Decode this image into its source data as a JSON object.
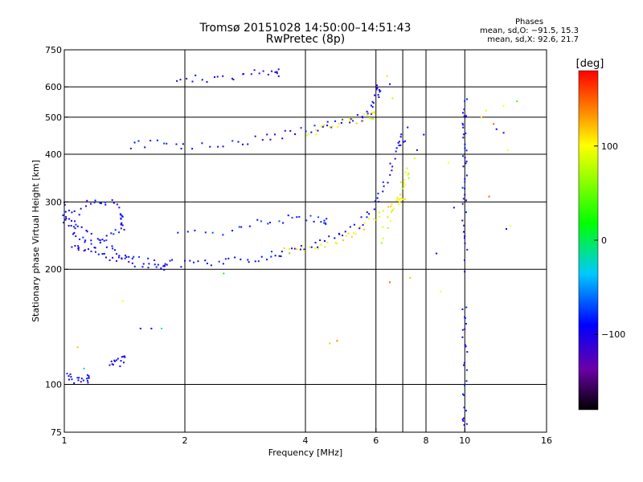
{
  "header": {
    "title_line1": "Tromsø 20151028 14:50:00–14:51:43",
    "title_line2": "RwPretec (8p)"
  },
  "stats": {
    "heading": "Phases",
    "line1": "mean, sd,O: −91.5, 15.3",
    "line2": "mean, sd,X:  92.6, 21.7"
  },
  "colorbar": {
    "label": "[deg]",
    "ticks": [
      {
        "value": 100,
        "label": "100"
      },
      {
        "value": 0,
        "label": "0"
      },
      {
        "value": -100,
        "label": "−100"
      }
    ],
    "range": [
      -180,
      180
    ]
  },
  "chart_data": {
    "type": "scatter",
    "title": "Tromsø 20151028 14:50:00–14:51:43",
    "subtitle": "RwPretec (8p)",
    "xlabel": "Frequency [MHz]",
    "ylabel": "Stationary phase Virtual Height [km]",
    "xscale": "log",
    "yscale": "log",
    "xlim": [
      1,
      16
    ],
    "ylim": [
      75,
      750
    ],
    "xticks": [
      {
        "v": 1,
        "label": "1"
      },
      {
        "v": 2,
        "label": "2"
      },
      {
        "v": 4,
        "label": "4"
      },
      {
        "v": 6,
        "label": "6"
      },
      {
        "v": 8,
        "label": "8"
      },
      {
        "v": 10,
        "label": "10"
      },
      {
        "v": 16,
        "label": "16"
      }
    ],
    "yticks": [
      {
        "v": 75,
        "label": "75"
      },
      {
        "v": 100,
        "label": "100"
      },
      {
        "v": 200,
        "label": "200"
      },
      {
        "v": 300,
        "label": "300"
      },
      {
        "v": 400,
        "label": "400"
      },
      {
        "v": 500,
        "label": "500"
      },
      {
        "v": 600,
        "label": "600"
      },
      {
        "v": 750,
        "label": "750"
      }
    ],
    "gridlines_x": [
      2,
      4,
      6,
      7,
      8,
      10
    ],
    "gridlines_y": [
      100,
      200,
      300,
      400,
      500,
      600
    ],
    "grid": true,
    "color_scale": "phase [deg], black (−180) to red (+180)",
    "traces": [
      {
        "name": "",
        "points": [
          [
            1.0,
            300
          ],
          [
            1.05,
            270
          ],
          [
            1.1,
            255
          ],
          [
            1.2,
            240
          ],
          [
            1.3,
            228
          ],
          [
            1.4,
            218
          ],
          [
            1.5,
            212
          ],
          [
            1.7,
            208
          ],
          [
            2.0,
            206
          ],
          [
            2.3,
            207
          ],
          [
            2.6,
            209
          ],
          [
            3.0,
            214
          ],
          [
            3.3,
            218
          ],
          [
            3.6,
            222
          ],
          [
            4.0,
            228
          ],
          [
            4.5,
            236
          ],
          [
            5.0,
            248
          ],
          [
            5.5,
            265
          ],
          [
            5.9,
            290
          ],
          [
            6.2,
            320
          ],
          [
            6.5,
            360
          ],
          [
            6.8,
            410
          ],
          [
            7.0,
            440
          ]
        ],
        "phase": -95
      },
      {
        "name": "",
        "points": [
          [
            1.05,
            230
          ],
          [
            1.1,
            225
          ],
          [
            1.2,
            220
          ],
          [
            1.3,
            215
          ],
          [
            1.4,
            208
          ],
          [
            1.6,
            205
          ],
          [
            1.8,
            204
          ]
        ],
        "phase": -100
      },
      {
        "name": "",
        "points": [
          [
            1.0,
            280
          ],
          [
            1.05,
            250
          ],
          [
            1.1,
            240
          ],
          [
            1.2,
            230
          ],
          [
            1.3,
            245
          ],
          [
            1.4,
            260
          ]
        ],
        "phase": -90
      },
      {
        "name": "",
        "points": [
          [
            1.0,
            260
          ],
          [
            1.1,
            290
          ],
          [
            1.2,
            305
          ],
          [
            1.3,
            300
          ],
          [
            1.4,
            275
          ]
        ],
        "phase": -95
      },
      {
        "name": "",
        "points": [
          [
            1.9,
            250
          ],
          [
            2.5,
            245
          ],
          [
            3.0,
            265
          ],
          [
            3.5,
            270
          ],
          [
            4.0,
            272
          ],
          [
            4.5,
            268
          ]
        ],
        "phase": -85
      },
      {
        "name": "",
        "points": [
          [
            3.5,
            222
          ],
          [
            4.0,
            225
          ],
          [
            4.5,
            230
          ],
          [
            5.0,
            240
          ],
          [
            5.5,
            255
          ],
          [
            6.0,
            275
          ],
          [
            6.5,
            295
          ],
          [
            7.0,
            310
          ]
        ],
        "phase": 100
      },
      {
        "name": "",
        "points": [
          [
            6.2,
            240
          ],
          [
            6.5,
            270
          ],
          [
            6.8,
            300
          ],
          [
            7.0,
            330
          ],
          [
            7.2,
            360
          ]
        ],
        "phase": 85
      },
      {
        "name": "",
        "points": [
          [
            1.45,
            420
          ],
          [
            1.7,
            430
          ],
          [
            2.0,
            420
          ],
          [
            2.5,
            425
          ],
          [
            3.0,
            435
          ],
          [
            3.5,
            450
          ],
          [
            4.0,
            465
          ],
          [
            4.5,
            475
          ],
          [
            5.0,
            485
          ],
          [
            5.5,
            500
          ],
          [
            5.8,
            520
          ],
          [
            6.0,
            560
          ],
          [
            6.1,
            600
          ]
        ],
        "phase": -95
      },
      {
        "name": "",
        "points": [
          [
            4.0,
            450
          ],
          [
            4.5,
            465
          ],
          [
            5.0,
            480
          ],
          [
            5.5,
            495
          ],
          [
            5.9,
            505
          ]
        ],
        "phase": 100
      },
      {
        "name": "",
        "points": [
          [
            1.9,
            620
          ],
          [
            2.2,
            630
          ],
          [
            2.6,
            640
          ],
          [
            3.0,
            650
          ],
          [
            3.4,
            655
          ]
        ],
        "phase": -100
      },
      {
        "name": "",
        "points": [
          [
            1.02,
            105
          ],
          [
            1.05,
            103
          ],
          [
            1.1,
            102
          ],
          [
            1.15,
            104
          ]
        ],
        "phase": -95
      },
      {
        "name": "",
        "points": [
          [
            1.3,
            115
          ],
          [
            1.35,
            113
          ],
          [
            1.4,
            116
          ]
        ],
        "phase": -100
      },
      {
        "name": "",
        "points": [
          [
            10.0,
            200
          ],
          [
            10.0,
            250
          ],
          [
            10.0,
            300
          ],
          [
            10.0,
            350
          ],
          [
            10.0,
            400
          ],
          [
            10.0,
            450
          ],
          [
            10.0,
            500
          ],
          [
            10.0,
            550
          ],
          [
            10.0,
            160
          ],
          [
            10.0,
            140
          ],
          [
            10.0,
            120
          ],
          [
            10.0,
            100
          ],
          [
            10.0,
            80
          ]
        ],
        "phase": -95
      }
    ],
    "scatter_points": [
      [
        1.55,
        140,
        -100
      ],
      [
        1.65,
        140,
        -100
      ],
      [
        1.75,
        140,
        -10
      ],
      [
        1.12,
        110,
        -30
      ],
      [
        1.08,
        125,
        120
      ],
      [
        1.4,
        165,
        100
      ],
      [
        2.5,
        195,
        20
      ],
      [
        4.6,
        128,
        120
      ],
      [
        4.8,
        130,
        140
      ],
      [
        6.5,
        185,
        150
      ],
      [
        7.3,
        190,
        120
      ],
      [
        7.6,
        410,
        -90
      ],
      [
        7.9,
        450,
        -90
      ],
      [
        8.5,
        220,
        -100
      ],
      [
        9.1,
        380,
        100
      ],
      [
        8.7,
        175,
        100
      ],
      [
        9.4,
        290,
        -100
      ],
      [
        11.0,
        500,
        100
      ],
      [
        11.5,
        310,
        150
      ],
      [
        12.0,
        465,
        -90
      ],
      [
        11.3,
        520,
        90
      ],
      [
        12.8,
        410,
        100
      ],
      [
        13.0,
        260,
        100
      ],
      [
        12.7,
        255,
        -100
      ],
      [
        12.5,
        535,
        100
      ],
      [
        13.5,
        550,
        40
      ],
      [
        12.5,
        455,
        -100
      ],
      [
        11.8,
        480,
        150
      ],
      [
        6.4,
        640,
        110
      ],
      [
        6.5,
        610,
        -100
      ],
      [
        6.6,
        560,
        80
      ],
      [
        7.2,
        470,
        -110
      ],
      [
        7.5,
        390,
        90
      ]
    ]
  }
}
